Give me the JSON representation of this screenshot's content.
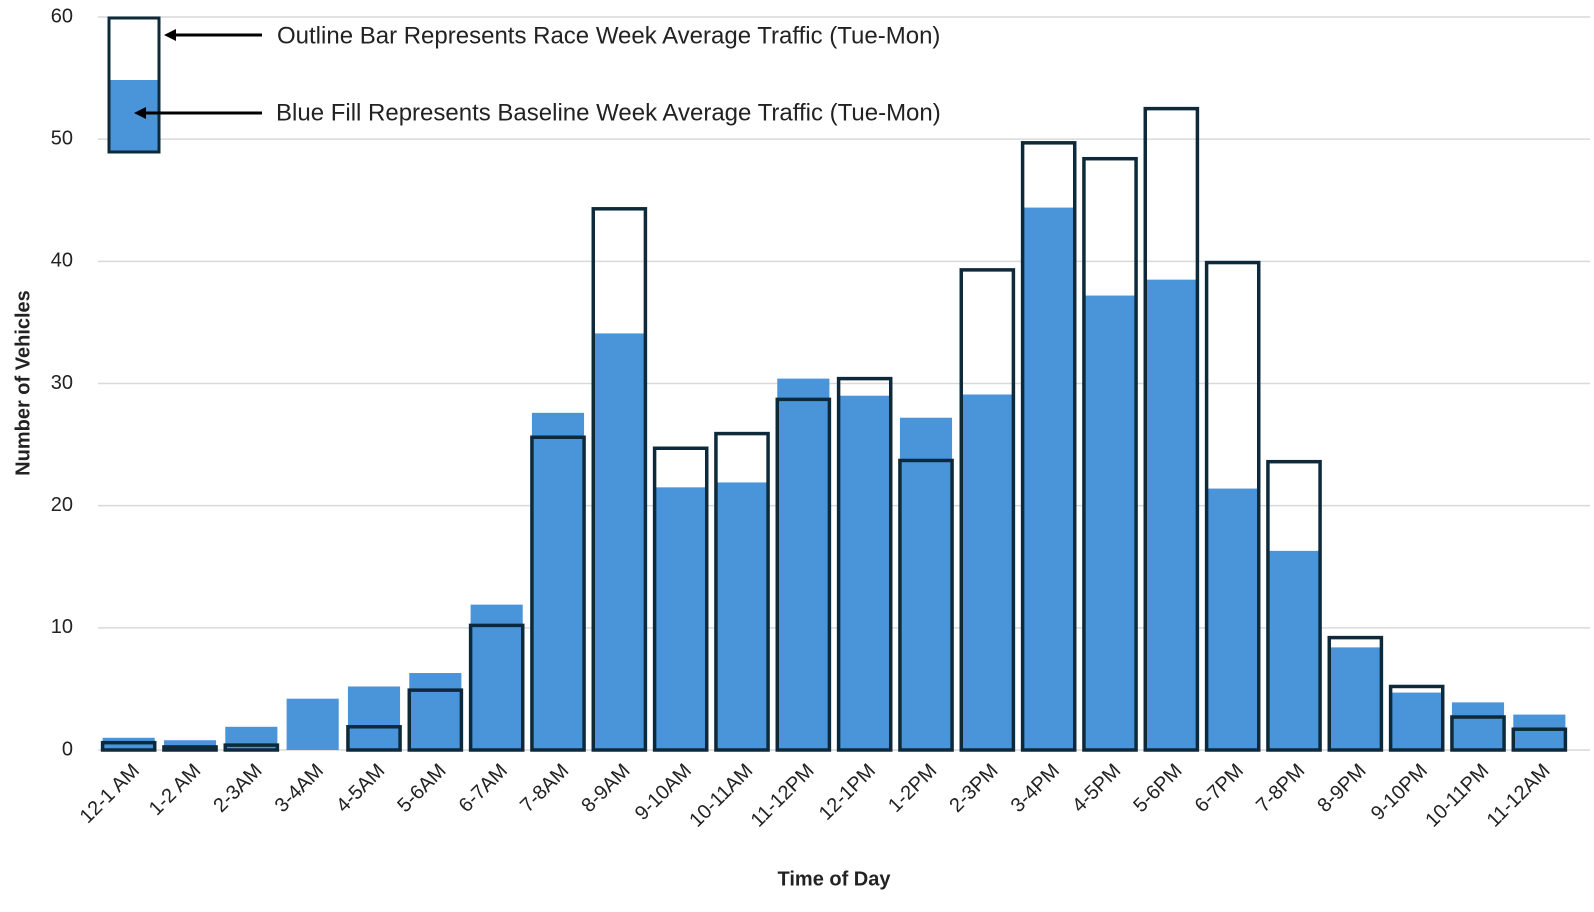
{
  "chart_data": {
    "type": "bar",
    "x_label": "Time of Day",
    "y_label": "Number of Vehicles",
    "categories": [
      "12-1 AM",
      "1-2 AM",
      "2-3AM",
      "3-4AM",
      "4-5AM",
      "5-6AM",
      "6-7AM",
      "7-8AM",
      "8-9AM",
      "9-10AM",
      "10-11AM",
      "11-12PM",
      "12-1PM",
      "1-2PM",
      "2-3PM",
      "3-4PM",
      "4-5PM",
      "5-6PM",
      "6-7PM",
      "7-8PM",
      "8-9PM",
      "9-10PM",
      "10-11PM",
      "11-12AM"
    ],
    "series": [
      {
        "name": "Blue Fill Represents Baseline Week Average Traffic (Tue-Mon)",
        "color": "#4a94da",
        "style": "fill",
        "values": [
          1.0,
          0.8,
          1.9,
          4.2,
          5.2,
          6.3,
          11.9,
          27.6,
          34.1,
          21.5,
          21.9,
          30.4,
          29.0,
          27.2,
          29.1,
          44.4,
          37.2,
          38.5,
          21.4,
          16.3,
          8.4,
          4.7,
          3.9,
          2.9
        ]
      },
      {
        "name": "Outline Bar Represents Race Week Average Traffic (Tue-Mon)",
        "color": "#0e2a3a",
        "style": "outline",
        "values": [
          0.6,
          0.25,
          0.4,
          0,
          1.9,
          4.9,
          10.2,
          25.6,
          44.3,
          24.7,
          25.9,
          28.7,
          30.4,
          23.7,
          39.3,
          49.7,
          48.4,
          52.5,
          39.9,
          23.6,
          9.2,
          5.2,
          2.7,
          1.7
        ]
      }
    ],
    "ylim": [
      0,
      60
    ],
    "yticks": [
      0,
      10,
      20,
      30,
      40,
      50,
      60
    ],
    "grid": true
  }
}
